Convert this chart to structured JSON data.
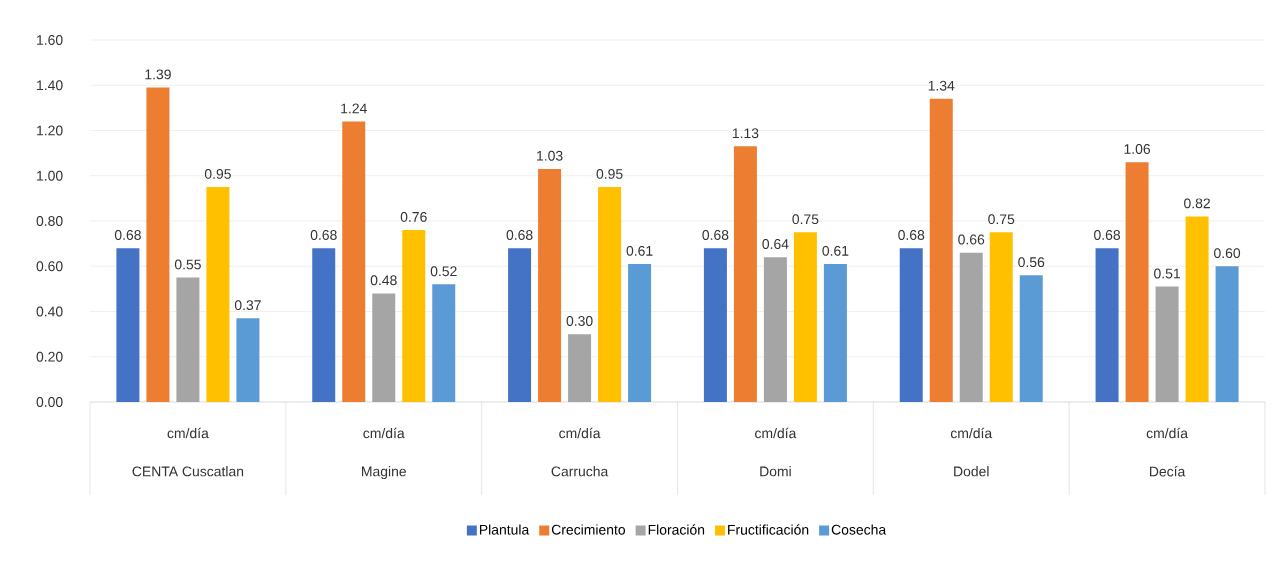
{
  "chart_data": {
    "type": "bar",
    "categories": [
      "CENTA Cuscatlan",
      "Magine",
      "Carrucha",
      "Domi",
      "Dodel",
      "Decía"
    ],
    "annotations": [
      "cm/día",
      "cm/día",
      "cm/día",
      "cm/día",
      "cm/día",
      "cm/día"
    ],
    "series": [
      {
        "name": "Plantula",
        "color": "#4472c4",
        "values": [
          0.68,
          0.68,
          0.68,
          0.68,
          0.68,
          0.68
        ],
        "value_labels": [
          "0.68",
          "0.68",
          "0.68",
          "0.68",
          "0.68",
          "0.68"
        ]
      },
      {
        "name": "Crecimiento",
        "color": "#ed7d31",
        "values": [
          1.39,
          1.24,
          1.03,
          1.13,
          1.34,
          1.06
        ],
        "value_labels": [
          "1.39",
          "1.24",
          "1.03",
          "1.13",
          "1.34",
          "1.06"
        ]
      },
      {
        "name": "Floración",
        "color": "#a5a5a5",
        "values": [
          0.55,
          0.48,
          0.3,
          0.64,
          0.66,
          0.51
        ],
        "value_labels": [
          "0.55",
          "0.48",
          "0.30",
          "0.64",
          "0.66",
          "0.51"
        ]
      },
      {
        "name": "Fructificación",
        "color": "#ffc000",
        "values": [
          0.95,
          0.76,
          0.95,
          0.75,
          0.75,
          0.82
        ],
        "value_labels": [
          "0.95",
          "0.76",
          "0.95",
          "0.75",
          "0.75",
          "0.82"
        ]
      },
      {
        "name": "Cosecha",
        "color": "#5b9bd5",
        "values": [
          0.37,
          0.52,
          0.61,
          0.61,
          0.56,
          0.6
        ],
        "value_labels": [
          "0.37",
          "0.52",
          "0.61",
          "0.61",
          "0.56",
          "0.60"
        ]
      }
    ],
    "ylim": [
      0,
      1.6
    ],
    "yticks": [
      {
        "value": 0,
        "label": "0.00"
      },
      {
        "value": 0.2,
        "label": "0.20"
      },
      {
        "value": 0.4,
        "label": "0.40"
      },
      {
        "value": 0.6,
        "label": "0.60"
      },
      {
        "value": 0.8,
        "label": "0.80"
      },
      {
        "value": 1.0,
        "label": "1.00"
      },
      {
        "value": 1.2,
        "label": "1.20"
      },
      {
        "value": 1.4,
        "label": "1.40"
      },
      {
        "value": 1.6,
        "label": "1.60"
      }
    ],
    "grid": "y",
    "legend": "bottom"
  }
}
